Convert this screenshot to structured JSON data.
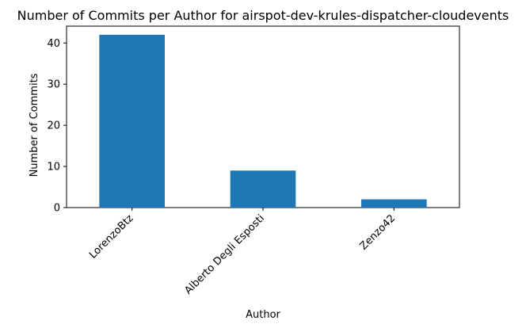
{
  "chart_data": {
    "type": "bar",
    "title": "Number of Commits per Author for airspot-dev-krules-dispatcher-cloudevents",
    "xlabel": "Author",
    "ylabel": "Number of Commits",
    "categories": [
      "LorenzoBtz",
      "Alberto Degli Esposti",
      "Zenzo42"
    ],
    "values": [
      42,
      9,
      2
    ],
    "ylim": [
      0,
      44.1
    ],
    "yticks": [
      0,
      10,
      20,
      30,
      40
    ],
    "grid": false,
    "bar_color": "#1f77b4"
  }
}
